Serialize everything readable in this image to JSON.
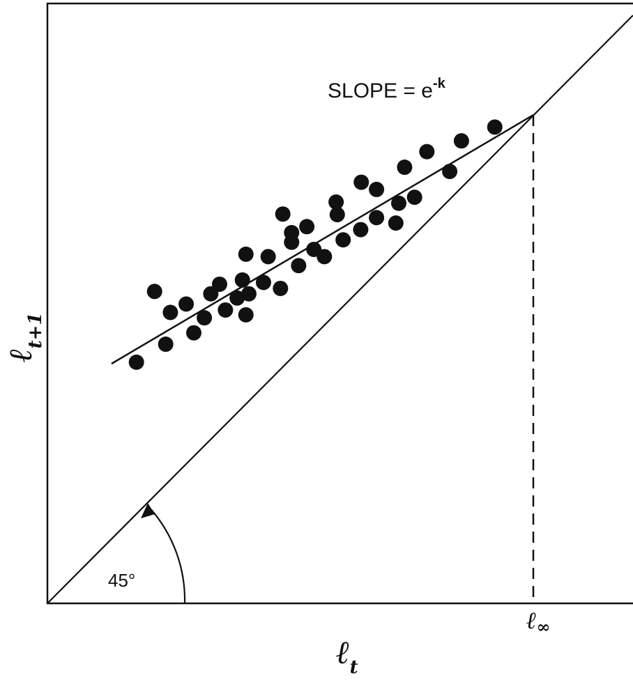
{
  "chart_data": {
    "type": "scatter",
    "annotation": {
      "text": "SLOPE = e",
      "exponent": "-k"
    },
    "angle_label": "45°",
    "x_label": {
      "symbol": "ℓ",
      "subscript": "t"
    },
    "y_label": {
      "symbol": "ℓ",
      "subscript": "t+1"
    },
    "equilibrium_label": {
      "symbol": "ℓ",
      "subscript": "∞"
    },
    "xlim": [
      0,
      100
    ],
    "ylim": [
      0,
      100
    ],
    "color": "#111111",
    "x": [
      15.2,
      18.3,
      20.2,
      21.0,
      23.7,
      25.0,
      26.8,
      27.9,
      29.4,
      30.4,
      32.4,
      33.3,
      33.9,
      34.4,
      33.9,
      36.9,
      37.7,
      39.8,
      40.2,
      41.7,
      41.7,
      42.9,
      44.3,
      45.5,
      47.3,
      49.3,
      49.5,
      50.5,
      53.5,
      53.6,
      56.2,
      56.2,
      59.5,
      60.0,
      61.0,
      62.7,
      64.8,
      68.7,
      70.7,
      76.4
    ],
    "values": [
      40.2,
      52.0,
      43.2,
      48.5,
      49.9,
      45.1,
      47.6,
      51.6,
      53.2,
      48.9,
      50.9,
      53.9,
      48.1,
      51.6,
      58.2,
      53.5,
      57.8,
      52.5,
      64.9,
      60.2,
      61.8,
      56.3,
      62.8,
      59.0,
      57.8,
      66.9,
      64.8,
      60.6,
      62.3,
      70.2,
      69.0,
      64.3,
      63.4,
      66.7,
      72.7,
      67.7,
      75.3,
      72.0,
      77.1,
      79.4
    ]
  }
}
